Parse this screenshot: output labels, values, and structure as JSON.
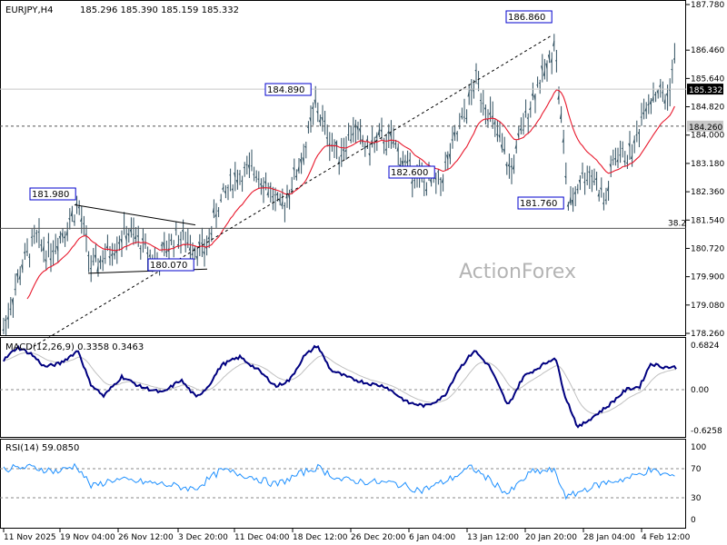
{
  "header": {
    "symbol": "EURJPY,H4",
    "ohlc": "185.296 185.390 185.159 185.332"
  },
  "watermark": "ActionForex",
  "colors": {
    "bars": "#2f4f5f",
    "ma": "#e8182c",
    "macd": "#000080",
    "signal": "#c0c0c0",
    "rsi": "#1e90ff",
    "label_border": "#0000cd"
  },
  "chart_data": [
    {
      "type": "candlestick",
      "name": "price",
      "ylim": [
        177.8,
        187.9
      ],
      "y_ticks": [
        "187.780",
        "186.460",
        "185.640",
        "184.820",
        "184.000",
        "183.180",
        "182.360",
        "181.540",
        "180.720",
        "179.900",
        "179.080",
        "178.260"
      ],
      "x_labels": [
        "11 Nov 2025",
        "19 Nov 04:00",
        "26 Nov 12:00",
        "3 Dec 20:00",
        "11 Dec 04:00",
        "18 Dec 12:00",
        "26 Dec 20:00",
        "6 Jan 04:00",
        "13 Jan 12:00",
        "20 Jan 20:00",
        "28 Jan 04:00",
        "4 Feb 12:00"
      ],
      "current_price": "185.332",
      "horizontal_level": "184.260",
      "fib_label": "38.2",
      "fib_level": 181.3,
      "annotations": [
        "181.980",
        "180.070",
        "184.890",
        "182.600",
        "186.860",
        "181.760"
      ]
    },
    {
      "type": "line",
      "name": "MACD(12,26,9) 0.3358 0.3463",
      "y_ticks": [
        "0.6824",
        "0.00",
        "-0.6258"
      ]
    },
    {
      "type": "line",
      "name": "RSI(14) 59.0850",
      "ylim": [
        0,
        100
      ],
      "y_ticks": [
        "100",
        "70",
        "30",
        "0"
      ]
    }
  ]
}
